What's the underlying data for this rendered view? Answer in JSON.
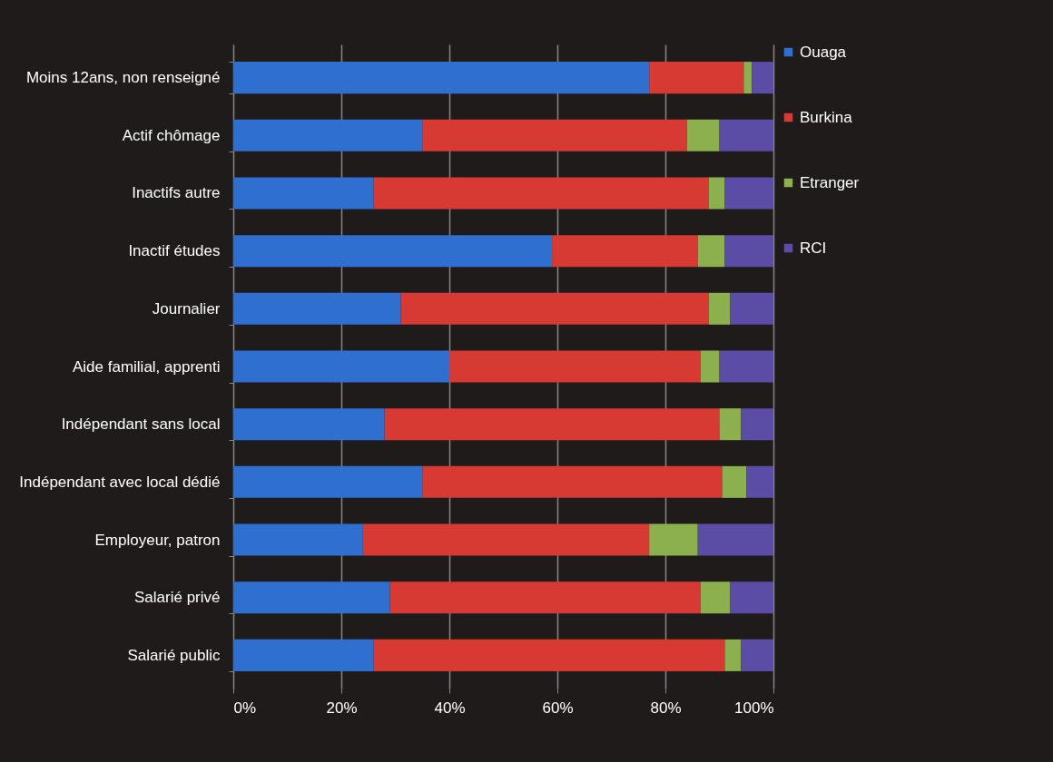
{
  "chart_data": {
    "type": "bar",
    "orientation": "horizontal",
    "stacked": true,
    "categories": [
      "Moins 12ans, non renseigné",
      "Actif chômage",
      "Inactifs autre",
      "Inactif études",
      "Journalier",
      "Aide familial, apprenti",
      "Indépendant sans local",
      "Indépendant avec local dédié",
      "Employeur, patron",
      "Salarié privé",
      "Salarié public"
    ],
    "series": [
      {
        "name": "Ouaga",
        "color": "#2e6fd0",
        "values": [
          77,
          35,
          26,
          59,
          31,
          40,
          28,
          35,
          24,
          29,
          26
        ]
      },
      {
        "name": "Burkina",
        "color": "#d63a33",
        "values": [
          17.5,
          49,
          62,
          27,
          57,
          46.5,
          62,
          55.5,
          53,
          57.5,
          65
        ]
      },
      {
        "name": "Etranger",
        "color": "#8db04f",
        "values": [
          1.5,
          6,
          3,
          5,
          4,
          3.5,
          4,
          4.5,
          9,
          5.5,
          3
        ]
      },
      {
        "name": "RCI",
        "color": "#5b4da6",
        "values": [
          4,
          10,
          9,
          9,
          8,
          10,
          6,
          5,
          14,
          8,
          6
        ]
      }
    ],
    "xlim": [
      0,
      100
    ],
    "xticks": [
      {
        "value": 0,
        "label": "0%"
      },
      {
        "value": 20,
        "label": "20%"
      },
      {
        "value": 40,
        "label": "40%"
      },
      {
        "value": 60,
        "label": "60%"
      },
      {
        "value": 80,
        "label": "80%"
      },
      {
        "value": 100,
        "label": "100%"
      }
    ],
    "grid": "x",
    "legend": "right"
  }
}
